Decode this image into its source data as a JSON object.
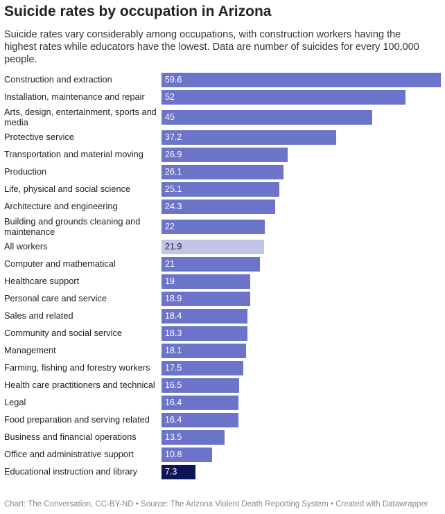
{
  "chart_data": {
    "type": "bar",
    "orientation": "horizontal",
    "title": "Suicide rates by occupation in Arizona",
    "subtitle": "Suicide rates vary considerably among occupations, with construction workers having the highest rates while educators have the lowest. Data are number of suicides for every 100,000 people.",
    "categories": [
      "Construction and extraction",
      "Installation, maintenance and repair",
      "Arts, design, entertainment, sports and media",
      "Protective service",
      "Transportation and material moving",
      "Production",
      "Life, physical and social science",
      "Architecture and engineering",
      "Building and grounds cleaning and maintenance",
      "All workers",
      "Computer and mathematical",
      "Healthcare support",
      "Personal care and service",
      "Sales and related",
      "Community and social service",
      "Management",
      "Farming, fishing and forestry workers",
      "Health care practitioners and technical",
      "Legal",
      "Food preparation and serving related",
      "Business and financial operations",
      "Office and administrative support",
      "Educational instruction and library"
    ],
    "values": [
      59.6,
      52,
      45,
      37.2,
      26.9,
      26.1,
      25.1,
      24.3,
      22,
      21.9,
      21,
      19,
      18.9,
      18.4,
      18.3,
      18.1,
      17.5,
      16.5,
      16.4,
      16.4,
      13.5,
      10.8,
      7.3
    ],
    "colors": [
      "#6b74c8",
      "#6b74c8",
      "#6b74c8",
      "#6b74c8",
      "#6b74c8",
      "#6b74c8",
      "#6b74c8",
      "#6b74c8",
      "#6b74c8",
      "#c1c4e8",
      "#6b74c8",
      "#6b74c8",
      "#6b74c8",
      "#6b74c8",
      "#6b74c8",
      "#6b74c8",
      "#6b74c8",
      "#6b74c8",
      "#6b74c8",
      "#6b74c8",
      "#6b74c8",
      "#6b74c8",
      "#0c1457"
    ],
    "footer": "Chart: The Conversation, CC-BY-ND • Source: The Arizona Violent Death Reporting System • Created with Datawrapper"
  }
}
